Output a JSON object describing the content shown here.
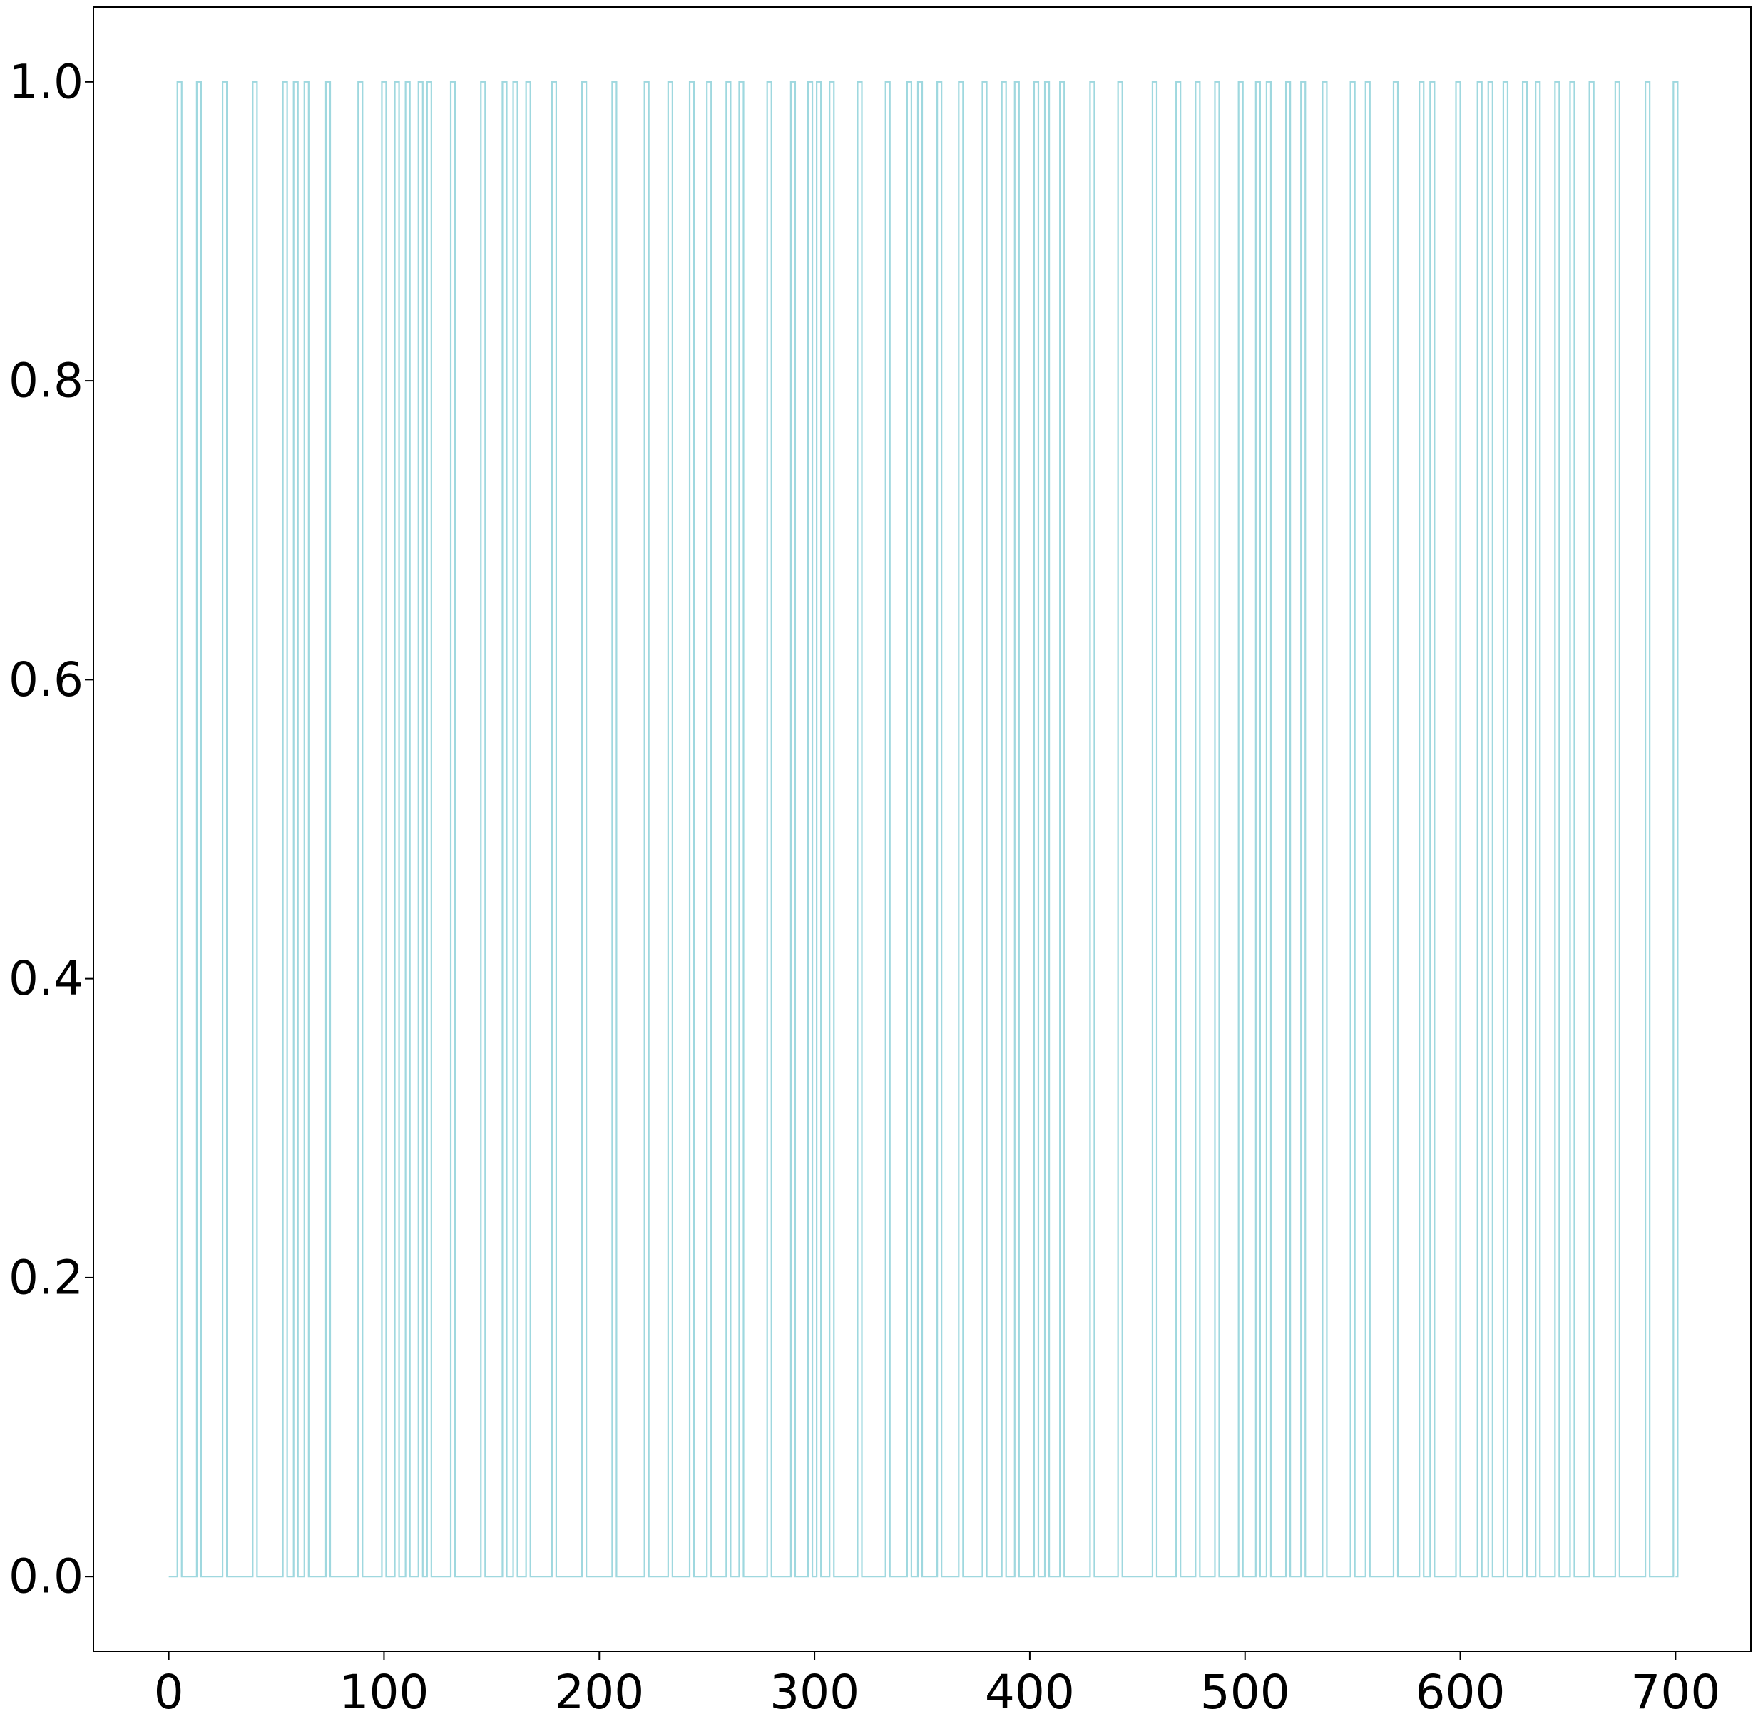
{
  "chart_data": {
    "type": "line",
    "title": "",
    "xlabel": "",
    "ylabel": "",
    "xlim": [
      -35,
      735
    ],
    "ylim": [
      -0.05,
      1.05
    ],
    "xticks": [
      "0",
      "100",
      "200",
      "300",
      "400",
      "500",
      "600",
      "700"
    ],
    "xtick_values": [
      0,
      100,
      200,
      300,
      400,
      500,
      600,
      700
    ],
    "yticks": [
      "0.0",
      "0.2",
      "0.4",
      "0.6",
      "0.8",
      "1.0"
    ],
    "ytick_values": [
      0.0,
      0.2,
      0.4,
      0.6,
      0.8,
      1.0
    ],
    "grid": false,
    "legend": "none",
    "series": [
      {
        "color": "#9fd8df",
        "pulse_width": 2,
        "pulse_starts": [
          4,
          13,
          25,
          39,
          53,
          58,
          63,
          73,
          88,
          99,
          105,
          110,
          116,
          120,
          131,
          145,
          155,
          160,
          166,
          178,
          192,
          206,
          221,
          232,
          242,
          250,
          259,
          265,
          278,
          289,
          297,
          301,
          307,
          320,
          333,
          343,
          348,
          357,
          367,
          378,
          387,
          393,
          402,
          407,
          414,
          428,
          441,
          457,
          468,
          477,
          486,
          497,
          505,
          510,
          519,
          526,
          536,
          549,
          556,
          569,
          581,
          586,
          598,
          608,
          613,
          620,
          629,
          635,
          644,
          651,
          660,
          672,
          686,
          699
        ],
        "x_end": 700,
        "low": 0,
        "high": 1
      }
    ]
  }
}
